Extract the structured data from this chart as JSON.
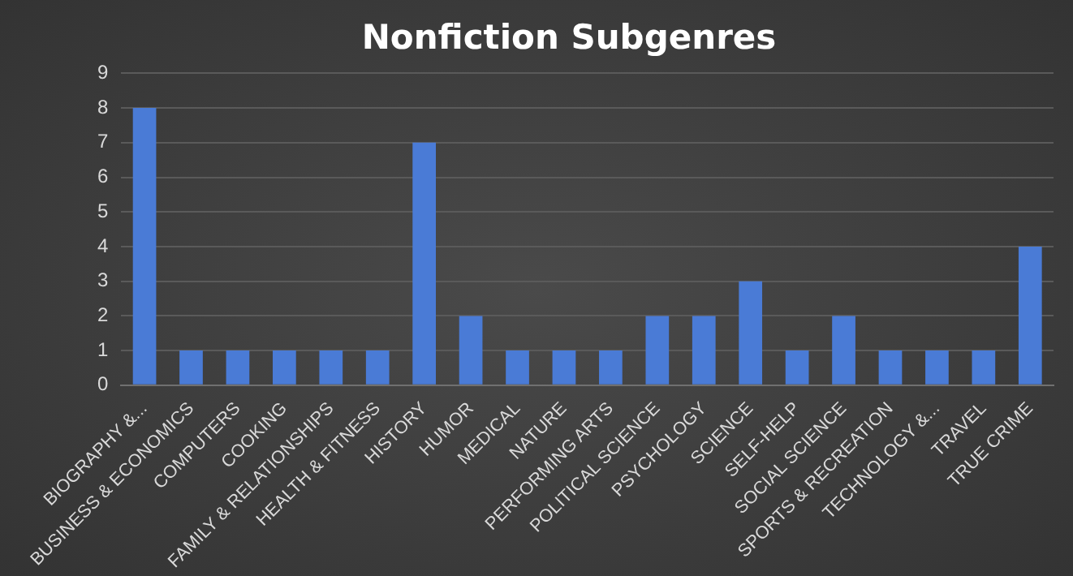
{
  "chart_data": {
    "type": "bar",
    "title": "Nonfiction Subgenres",
    "categories": [
      "BIOGRAPHY &...",
      "BUSINESS & ECONOMICS",
      "COMPUTERS",
      "COOKING",
      "FAMILY & RELATIONSHIPS",
      "HEALTH & FITNESS",
      "HISTORY",
      "HUMOR",
      "MEDICAL",
      "NATURE",
      "PERFORMING ARTS",
      "POLITICAL SCIENCE",
      "PSYCHOLOGY",
      "SCIENCE",
      "SELF-HELP",
      "SOCIAL SCIENCE",
      "SPORTS & RECREATION",
      "TECHNOLOGY &...",
      "TRAVEL",
      "TRUE CRIME"
    ],
    "values": [
      8,
      1,
      1,
      1,
      1,
      1,
      7,
      2,
      1,
      1,
      1,
      2,
      2,
      3,
      1,
      2,
      1,
      1,
      1,
      4
    ],
    "color": "#4a7bd6",
    "ylim": [
      0,
      9
    ],
    "yticks": [
      0,
      1,
      2,
      3,
      4,
      5,
      6,
      7,
      8,
      9
    ],
    "grid": "y"
  }
}
